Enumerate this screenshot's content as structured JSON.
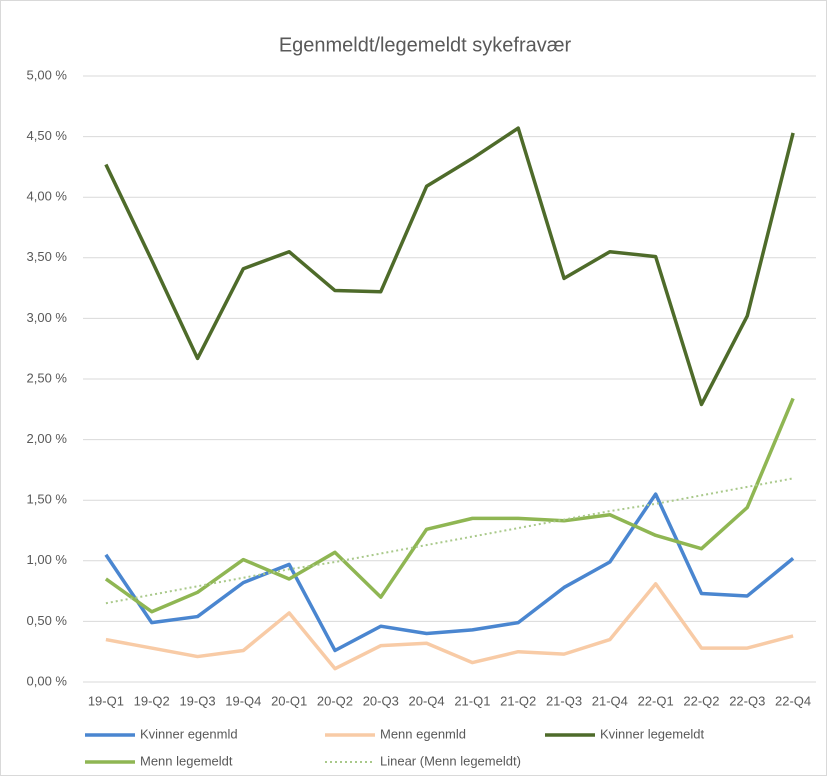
{
  "chart_data": {
    "type": "line",
    "title": "Egenmeldt/legemeldt sykefravær",
    "categories": [
      "19-Q1",
      "19-Q2",
      "19-Q3",
      "19-Q4",
      "20-Q1",
      "20-Q2",
      "20-Q3",
      "20-Q4",
      "21-Q1",
      "21-Q2",
      "21-Q3",
      "21-Q4",
      "22-Q1",
      "22-Q2",
      "22-Q3",
      "22-Q4"
    ],
    "series": [
      {
        "name": "Kvinner egenmld",
        "color": "#4a86d0",
        "values": [
          1.05,
          0.49,
          0.54,
          0.82,
          0.97,
          0.26,
          0.46,
          0.4,
          0.43,
          0.49,
          0.78,
          0.99,
          1.55,
          0.73,
          0.71,
          1.02
        ]
      },
      {
        "name": "Menn egenmld",
        "color": "#f8cba6",
        "values": [
          0.35,
          0.28,
          0.21,
          0.26,
          0.57,
          0.11,
          0.3,
          0.32,
          0.16,
          0.25,
          0.23,
          0.35,
          0.81,
          0.28,
          0.28,
          0.38
        ]
      },
      {
        "name": "Kvinner legemeldt",
        "color": "#4e6b2a",
        "values": [
          4.27,
          3.48,
          2.67,
          3.41,
          3.55,
          3.23,
          3.22,
          4.09,
          4.32,
          4.57,
          3.33,
          3.55,
          3.51,
          2.29,
          3.02,
          4.53
        ]
      },
      {
        "name": "Menn legemeldt",
        "color": "#8fb653",
        "values": [
          0.85,
          0.58,
          0.74,
          1.01,
          0.85,
          1.07,
          0.7,
          1.26,
          1.35,
          1.35,
          1.33,
          1.38,
          1.21,
          1.1,
          1.44,
          2.34
        ]
      },
      {
        "name": "Linear (Menn legemeldt)",
        "color": "#a9c98a",
        "style": "dotted",
        "values": [
          0.65,
          0.72,
          0.79,
          0.86,
          0.93,
          0.99,
          1.06,
          1.13,
          1.2,
          1.27,
          1.34,
          1.41,
          1.47,
          1.54,
          1.61,
          1.68
        ]
      }
    ],
    "ylim": [
      0,
      5
    ],
    "yticks": [
      {
        "value": 0,
        "label": "0,00 %"
      },
      {
        "value": 0.5,
        "label": "0,50 %"
      },
      {
        "value": 1,
        "label": "1,00 %"
      },
      {
        "value": 1.5,
        "label": "1,50 %"
      },
      {
        "value": 2,
        "label": "2,00 %"
      },
      {
        "value": 2.5,
        "label": "2,50 %"
      },
      {
        "value": 3,
        "label": "3,00 %"
      },
      {
        "value": 3.5,
        "label": "3,50 %"
      },
      {
        "value": 4,
        "label": "4,00 %"
      },
      {
        "value": 4.5,
        "label": "4,50 %"
      },
      {
        "value": 5,
        "label": "5,00 %"
      }
    ],
    "grid": true,
    "legend": "bottom"
  }
}
